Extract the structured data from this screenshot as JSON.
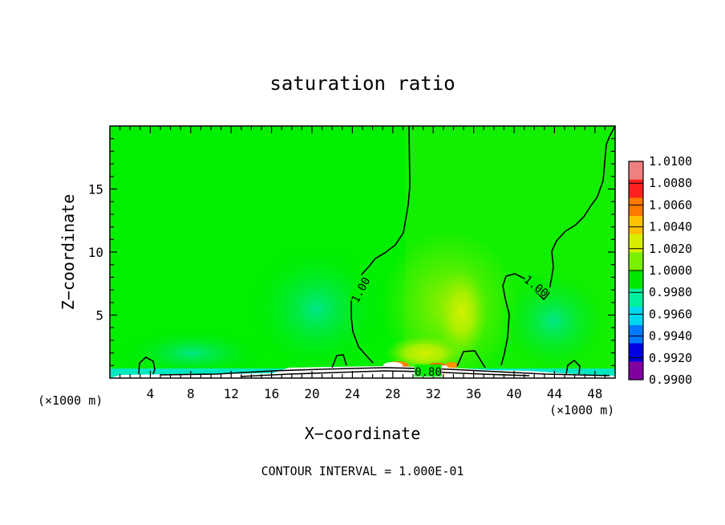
{
  "chart_data": {
    "type": "heatmap",
    "title": "saturation ratio",
    "xlabel": "X−coordinate",
    "ylabel": "Z−coordinate",
    "x_unit_left": "(×1000 m)",
    "x_unit_right": "(×1000 m)",
    "xlim": [
      0,
      50
    ],
    "ylim": [
      0,
      20
    ],
    "x_ticks": [
      4,
      8,
      12,
      16,
      20,
      24,
      28,
      32,
      36,
      40,
      44,
      48
    ],
    "y_ticks": [
      5,
      10,
      15
    ],
    "contour_labels": [
      {
        "text": "1.00",
        "x": 24.8,
        "z": 7.0,
        "angle": -62
      },
      {
        "text": "1.00",
        "x": 42.2,
        "z": 7.3,
        "angle": 38
      },
      {
        "text": "0.80",
        "x": 31.5,
        "z": 0.5,
        "angle": 0
      }
    ],
    "colorbar": {
      "levels": [
        "1.0100",
        "1.0080",
        "1.0060",
        "1.0040",
        "1.0020",
        "1.0000",
        "0.9980",
        "0.9960",
        "0.9940",
        "0.9920",
        "0.9900"
      ],
      "colors": [
        "#f08080",
        "#ff2020",
        "#ff7800",
        "#ffc000",
        "#d8f000",
        "#78f000",
        "#00e800",
        "#00f0a0",
        "#00d8f0",
        "#0078ff",
        "#0000e0",
        "#8000a0"
      ]
    },
    "footer": "CONTOUR INTERVAL = 1.000E-01"
  }
}
